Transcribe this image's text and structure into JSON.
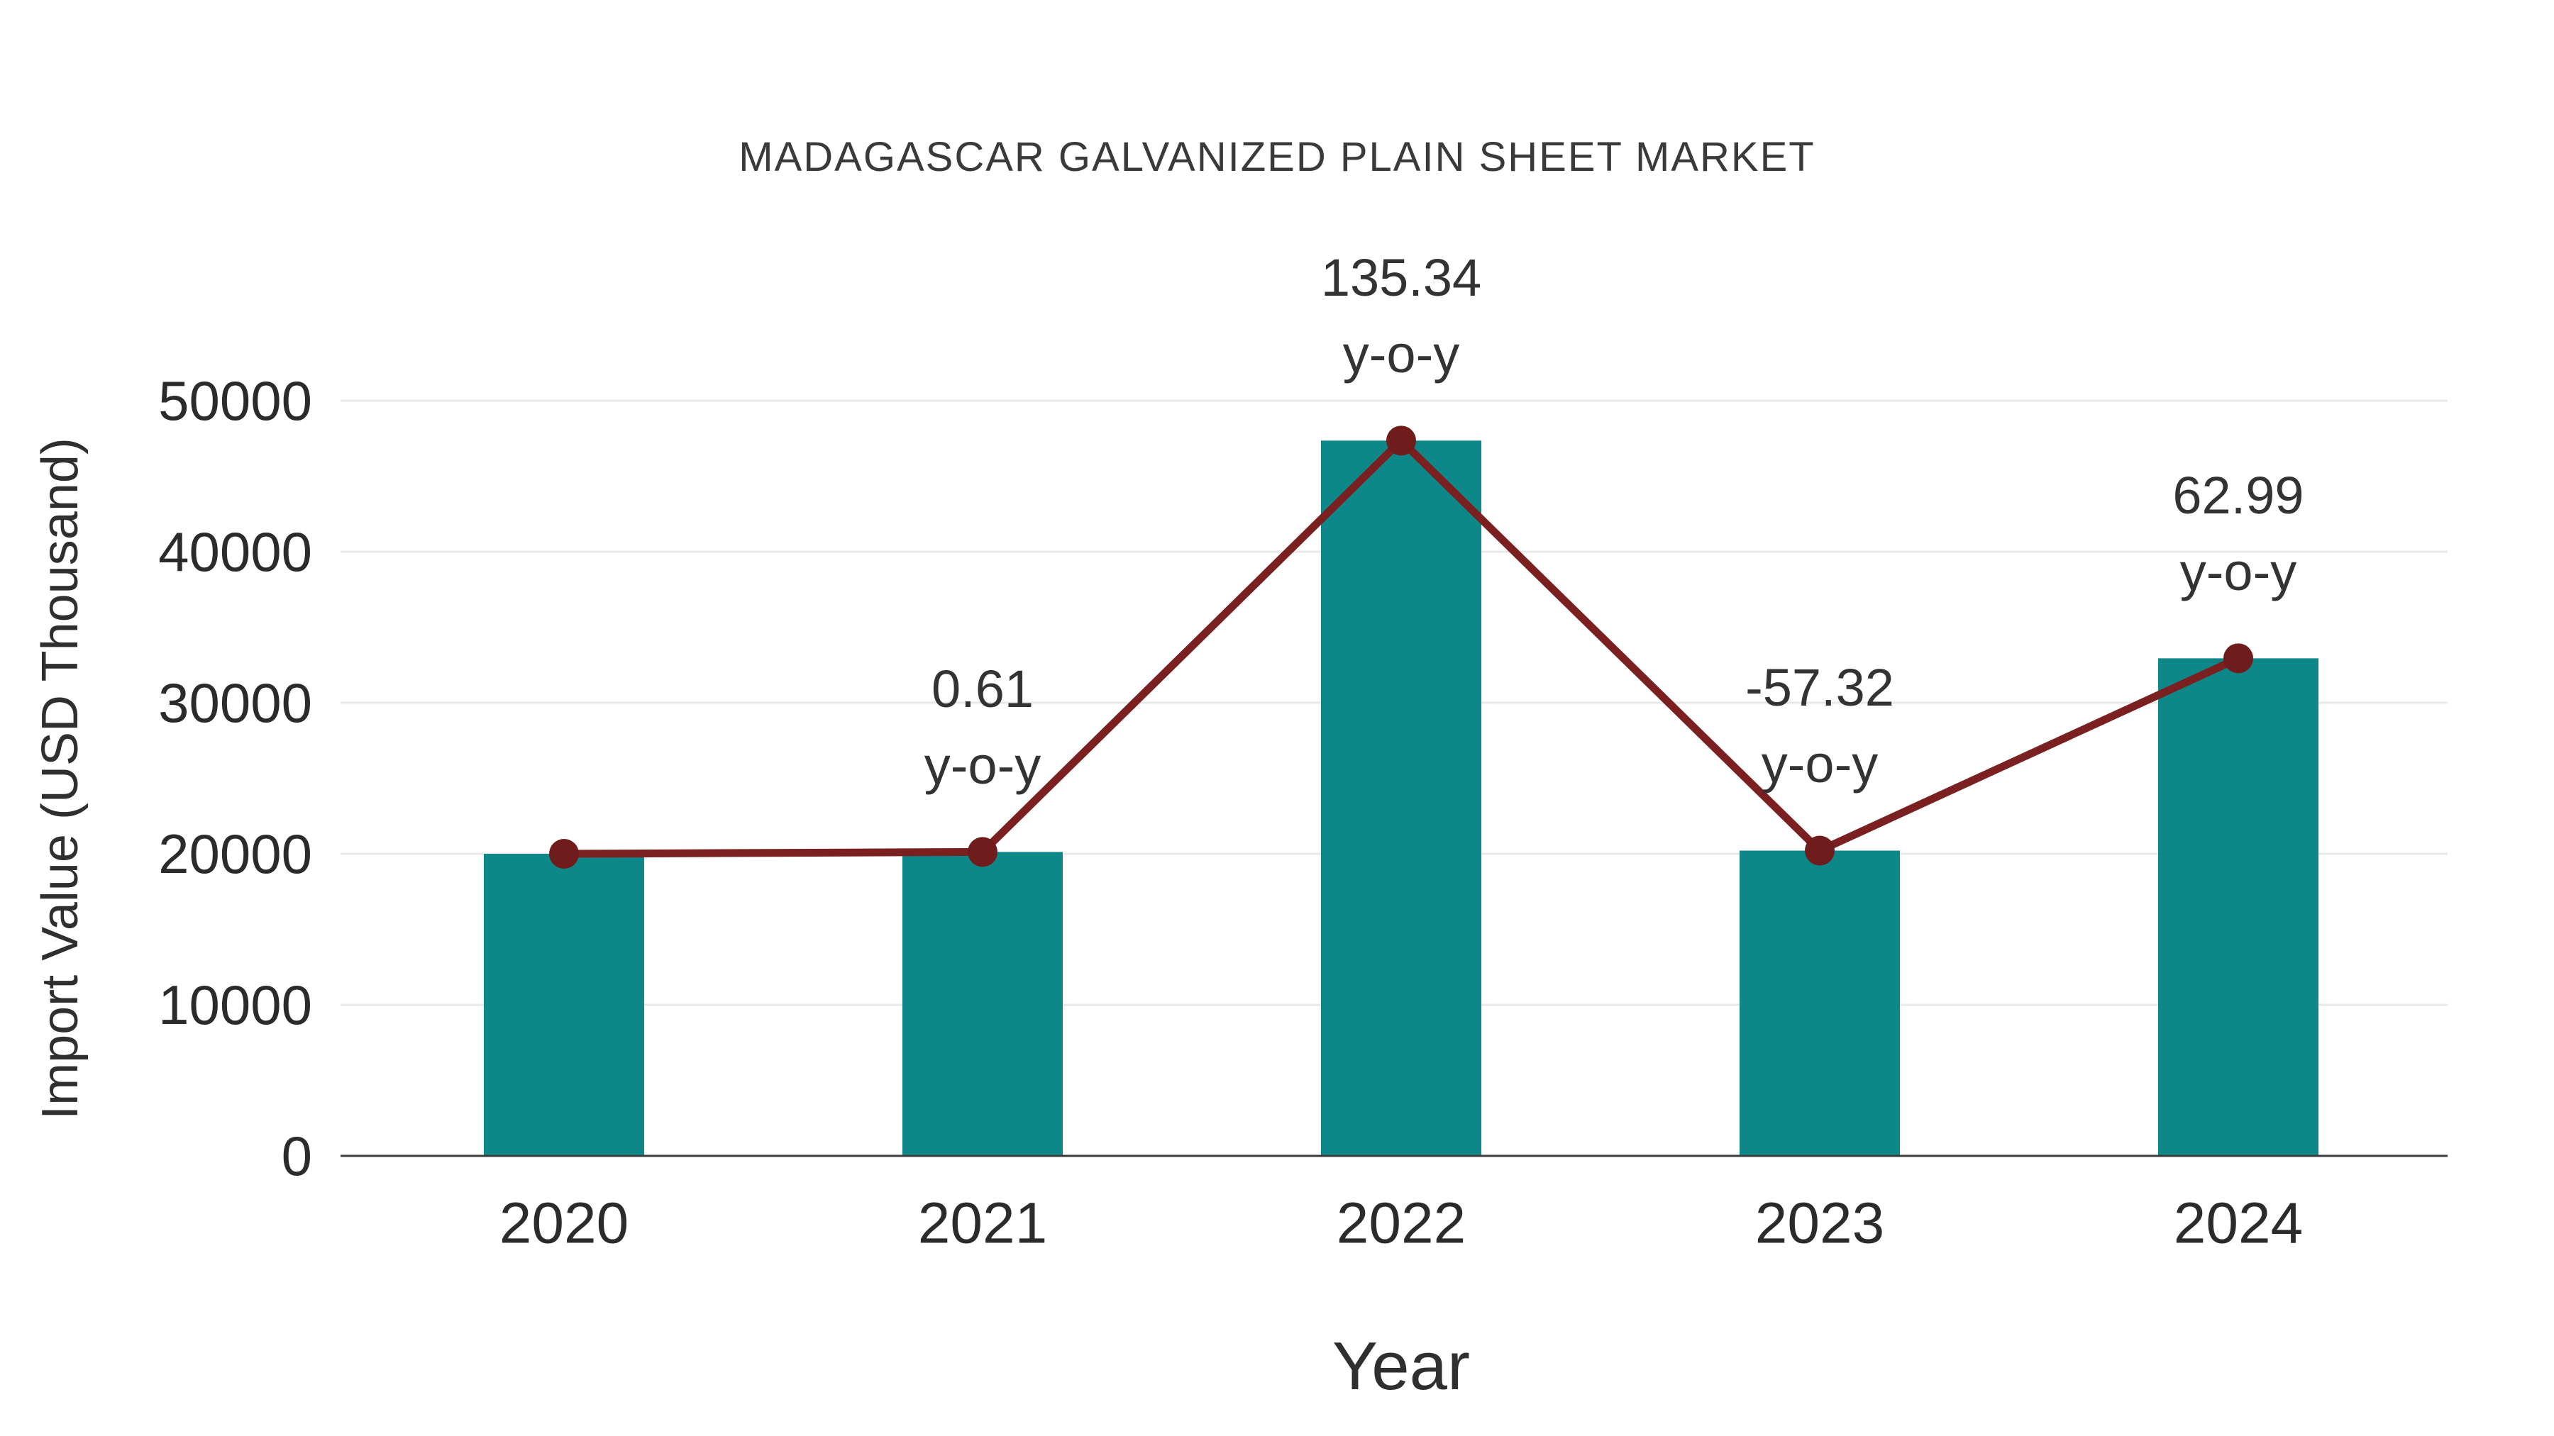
{
  "chart_data": {
    "type": "bar",
    "title": "MADAGASCAR GALVANIZED PLAIN SHEET MARKET",
    "xlabel": "Year",
    "ylabel": "Import Value (USD Thousand)",
    "categories": [
      "2020",
      "2021",
      "2022",
      "2023",
      "2024"
    ],
    "series": [
      {
        "name": "Import Value (USD Thousand)",
        "type": "bar",
        "color": "#0e8789",
        "values": [
          20000,
          20122,
          47355,
          20211,
          32942
        ]
      },
      {
        "name": "y-o-y growth line",
        "type": "line",
        "color": "#7a2020",
        "marker_color": "#701c1c",
        "values": [
          20000,
          20122,
          47355,
          20211,
          32942
        ]
      }
    ],
    "annotations": {
      "suffix": "y-o-y",
      "values": [
        "",
        "0.61",
        "135.34",
        "-57.32",
        "62.99"
      ]
    },
    "ylim": [
      0,
      50000
    ],
    "yticks": [
      0,
      10000,
      20000,
      30000,
      40000,
      50000
    ],
    "grid": true,
    "legend": "none",
    "colors": {
      "grid": "#e8e8e8",
      "axis": "#3c3c3c",
      "tick_text": "#2b2b2b",
      "annotation_text": "#333333",
      "background": "#ffffff"
    }
  }
}
